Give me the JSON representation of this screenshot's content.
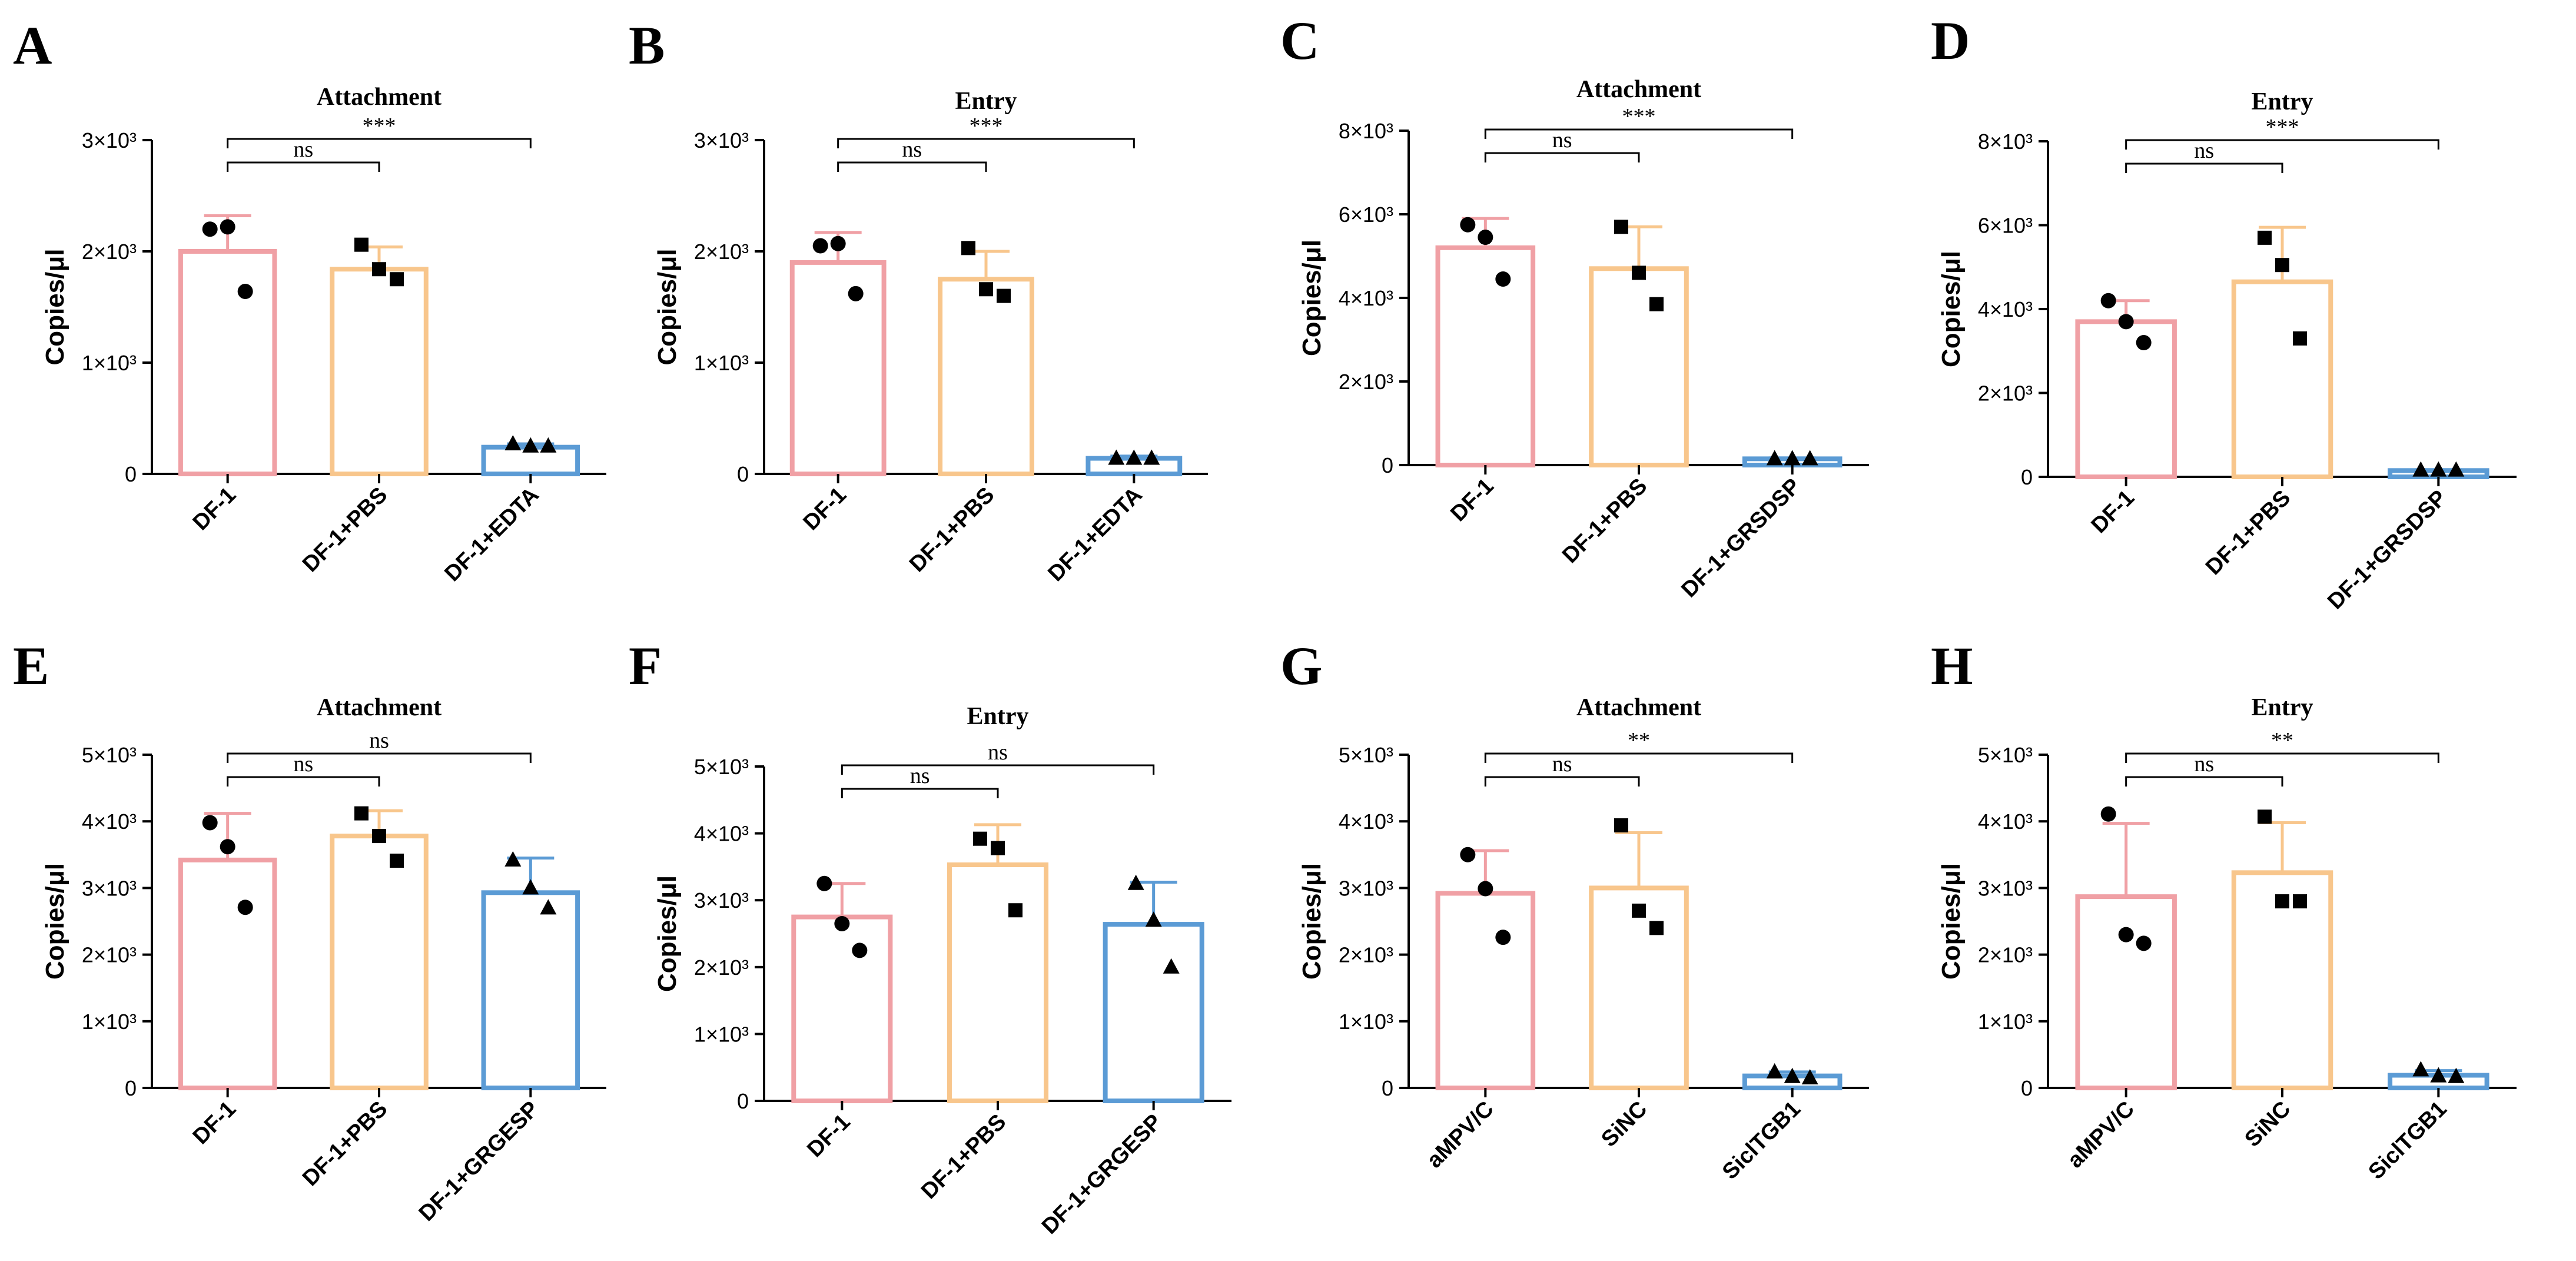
{
  "colors": {
    "pink": "#F0A0A5",
    "orange": "#F8C68C",
    "blue": "#5B9BD5",
    "black": "#000000"
  },
  "chart_data": [
    {
      "letter": "A",
      "type": "bar",
      "title": "Attachment",
      "ylabel": "Copies/μl",
      "categories": [
        "DF-1",
        "DF-1+PBS",
        "DF-1+EDTA"
      ],
      "values": [
        2000,
        1840,
        240
      ],
      "sd": [
        320,
        200,
        30
      ],
      "points": [
        [
          2200,
          2220,
          1640
        ],
        [
          2060,
          1840,
          1750
        ],
        [
          270,
          250,
          250
        ]
      ],
      "markers": [
        "circle",
        "square",
        "triangle"
      ],
      "ylim": [
        0,
        3000
      ],
      "yticks": [
        0,
        1000,
        2000,
        3000
      ],
      "yticklabels": [
        "0",
        "1×10³",
        "2×10³",
        "3×10³"
      ],
      "comparisons": [
        {
          "from": 0,
          "to": 1,
          "label": "ns"
        },
        {
          "from": 0,
          "to": 2,
          "label": "***"
        }
      ]
    },
    {
      "letter": "B",
      "type": "bar",
      "title": "Entry",
      "ylabel": "Copies/μl",
      "categories": [
        "DF-1",
        "DF-1+PBS",
        "DF-1+EDTA"
      ],
      "values": [
        1900,
        1750,
        140
      ],
      "sd": [
        270,
        250,
        20
      ],
      "points": [
        [
          2050,
          2070,
          1620
        ],
        [
          2030,
          1660,
          1600
        ],
        [
          140,
          140,
          140
        ]
      ],
      "markers": [
        "circle",
        "square",
        "triangle"
      ],
      "ylim": [
        0,
        3000
      ],
      "yticks": [
        0,
        1000,
        2000,
        3000
      ],
      "yticklabels": [
        "0",
        "1×10³",
        "2×10³",
        "3×10³"
      ],
      "comparisons": [
        {
          "from": 0,
          "to": 1,
          "label": "ns"
        },
        {
          "from": 0,
          "to": 2,
          "label": "***"
        }
      ]
    },
    {
      "letter": "C",
      "type": "bar",
      "title": "Attachment",
      "ylabel": "Copies/μl",
      "categories": [
        "DF-1",
        "DF-1+PBS",
        "DF-1+GRSDSP"
      ],
      "values": [
        5200,
        4700,
        150
      ],
      "sd": [
        700,
        1000,
        20
      ],
      "points": [
        [
          5750,
          5450,
          4450
        ],
        [
          5700,
          4600,
          3850
        ],
        [
          150,
          150,
          150
        ]
      ],
      "markers": [
        "circle",
        "square",
        "triangle"
      ],
      "ylim": [
        0,
        8000
      ],
      "yticks": [
        0,
        2000,
        4000,
        6000,
        8000
      ],
      "yticklabels": [
        "0",
        "2×10³",
        "4×10³",
        "6×10³",
        "8×10³"
      ],
      "comparisons": [
        {
          "from": 0,
          "to": 1,
          "label": "ns"
        },
        {
          "from": 0,
          "to": 2,
          "label": "***"
        }
      ]
    },
    {
      "letter": "D",
      "type": "bar",
      "title": "Entry",
      "ylabel": "Copies/μl",
      "categories": [
        "DF-1",
        "DF-1+PBS",
        "DF-1+GRSDSP"
      ],
      "values": [
        3700,
        4650,
        150
      ],
      "sd": [
        500,
        1300,
        20
      ],
      "points": [
        [
          4200,
          3700,
          3200
        ],
        [
          5700,
          5050,
          3300
        ],
        [
          160,
          160,
          160
        ]
      ],
      "markers": [
        "circle",
        "square",
        "triangle"
      ],
      "ylim": [
        0,
        8000
      ],
      "yticks": [
        0,
        2000,
        4000,
        6000,
        8000
      ],
      "yticklabels": [
        "0",
        "2×10³",
        "4×10³",
        "6×10³",
        "8×10³"
      ],
      "comparisons": [
        {
          "from": 0,
          "to": 1,
          "label": "ns"
        },
        {
          "from": 0,
          "to": 2,
          "label": "***"
        }
      ]
    },
    {
      "letter": "E",
      "type": "bar",
      "title": "Attachment",
      "ylabel": "Copies/μl",
      "categories": [
        "DF-1",
        "DF-1+PBS",
        "DF-1+GRGESP"
      ],
      "values": [
        3420,
        3780,
        2930
      ],
      "sd": [
        700,
        380,
        520
      ],
      "points": [
        [
          3980,
          3620,
          2710
        ],
        [
          4120,
          3780,
          3410
        ],
        [
          3420,
          3000,
          2700
        ]
      ],
      "markers": [
        "circle",
        "square",
        "triangle"
      ],
      "ylim": [
        0,
        5000
      ],
      "yticks": [
        0,
        1000,
        2000,
        3000,
        4000,
        5000
      ],
      "yticklabels": [
        "0",
        "1×10³",
        "2×10³",
        "3×10³",
        "4×10³",
        "5×10³"
      ],
      "comparisons": [
        {
          "from": 0,
          "to": 1,
          "label": "ns"
        },
        {
          "from": 0,
          "to": 2,
          "label": "ns"
        }
      ]
    },
    {
      "letter": "F",
      "type": "bar",
      "title": "Entry",
      "ylabel": "Copies/μl",
      "categories": [
        "DF-1",
        "DF-1+PBS",
        "DF-1+GRGESP"
      ],
      "values": [
        2750,
        3530,
        2640
      ],
      "sd": [
        500,
        600,
        630
      ],
      "points": [
        [
          3250,
          2650,
          2250
        ],
        [
          3920,
          3780,
          2850
        ],
        [
          3250,
          2700,
          2000
        ]
      ],
      "markers": [
        "circle",
        "square",
        "triangle"
      ],
      "ylim": [
        0,
        5000
      ],
      "yticks": [
        0,
        1000,
        2000,
        3000,
        4000,
        5000
      ],
      "yticklabels": [
        "0",
        "1×10³",
        "2×10³",
        "3×10³",
        "4×10³",
        "5×10³"
      ],
      "comparisons": [
        {
          "from": 0,
          "to": 1,
          "label": "ns"
        },
        {
          "from": 0,
          "to": 2,
          "label": "ns"
        }
      ]
    },
    {
      "letter": "G",
      "type": "bar",
      "title": "Attachment",
      "ylabel": "Copies/μl",
      "categories": [
        "aMPV/C",
        "SiNC",
        "SiclTGB1"
      ],
      "values": [
        2920,
        3000,
        180
      ],
      "sd": [
        640,
        830,
        60
      ],
      "points": [
        [
          3500,
          2990,
          2260
        ],
        [
          3940,
          2660,
          2400
        ],
        [
          240,
          170,
          150
        ]
      ],
      "markers": [
        "circle",
        "square",
        "triangle"
      ],
      "ylim": [
        0,
        5000
      ],
      "yticks": [
        0,
        1000,
        2000,
        3000,
        4000,
        5000
      ],
      "yticklabels": [
        "0",
        "1×10³",
        "2×10³",
        "3×10³",
        "4×10³",
        "5×10³"
      ],
      "comparisons": [
        {
          "from": 0,
          "to": 1,
          "label": "ns"
        },
        {
          "from": 0,
          "to": 2,
          "label": "**"
        }
      ]
    },
    {
      "letter": "H",
      "type": "bar",
      "title": "Entry",
      "ylabel": "Copies/μl",
      "categories": [
        "aMPV/C",
        "SiNC",
        "SiclTGB1"
      ],
      "values": [
        2870,
        3230,
        190
      ],
      "sd": [
        1100,
        750,
        70
      ],
      "points": [
        [
          4110,
          2300,
          2170
        ],
        [
          4070,
          2800,
          2800
        ],
        [
          270,
          180,
          170
        ]
      ],
      "markers": [
        "circle",
        "square",
        "triangle"
      ],
      "ylim": [
        0,
        5000
      ],
      "yticks": [
        0,
        1000,
        2000,
        3000,
        4000,
        5000
      ],
      "yticklabels": [
        "0",
        "1×10³",
        "2×10³",
        "3×10³",
        "4×10³",
        "5×10³"
      ],
      "comparisons": [
        {
          "from": 0,
          "to": 1,
          "label": "ns"
        },
        {
          "from": 0,
          "to": 2,
          "label": "**"
        }
      ]
    }
  ]
}
